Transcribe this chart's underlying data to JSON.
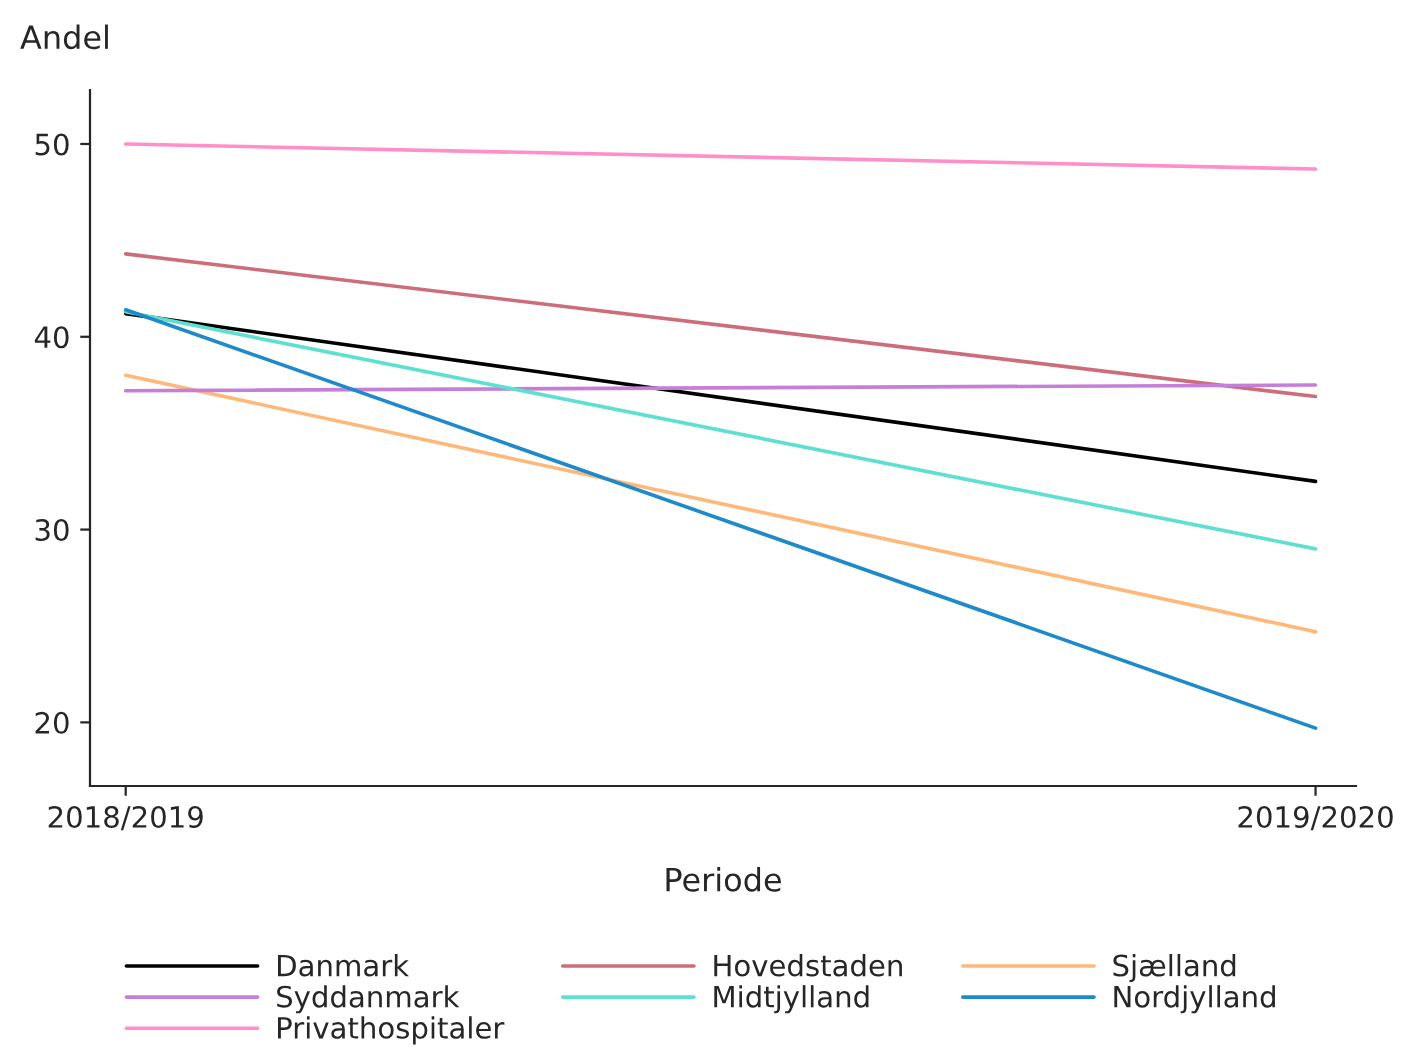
{
  "chart_data": {
    "type": "line",
    "xlabel": "Periode",
    "ylabel": "Andel",
    "categories": [
      "2018/2019",
      "2019/2020"
    ],
    "series": [
      {
        "name": "Danmark",
        "color": "#000000",
        "values": [
          41.2,
          32.5
        ]
      },
      {
        "name": "Hovedstaden",
        "color": "#cd6d7a",
        "values": [
          44.3,
          36.9
        ]
      },
      {
        "name": "Sjælland",
        "color": "#ffb87a",
        "values": [
          38.0,
          24.7
        ]
      },
      {
        "name": "Syddanmark",
        "color": "#c57fd8",
        "values": [
          37.2,
          37.5
        ]
      },
      {
        "name": "Midtjylland",
        "color": "#5fdfd0",
        "values": [
          41.3,
          29.0
        ]
      },
      {
        "name": "Nordjylland",
        "color": "#1f8ac9",
        "values": [
          41.4,
          19.7
        ]
      },
      {
        "name": "Privathospitaler",
        "color": "#ff8fc8",
        "values": [
          50.0,
          48.7
        ]
      }
    ],
    "ylim": [
      16.7,
      52.8
    ],
    "yticks": [
      20,
      30,
      40,
      50
    ],
    "grid": false,
    "legend": "bottom",
    "marker": "none",
    "line_style": "solid"
  }
}
